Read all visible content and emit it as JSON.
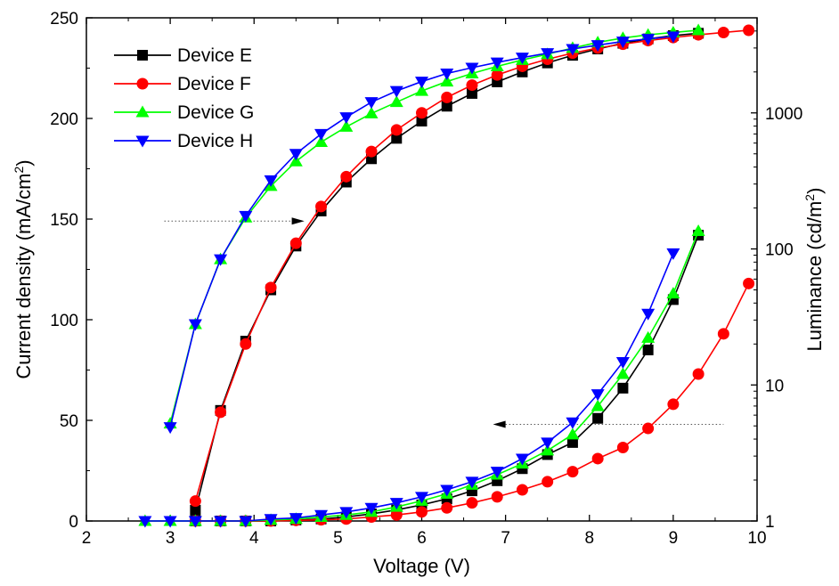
{
  "chart_data": {
    "type": "line",
    "xlabel": "Voltage (V)",
    "ylabel_left": "Current density (mA/cm",
    "ylabel_left_sup": "2",
    "ylabel_left_tail": ")",
    "ylabel_right": "Luminance (cd/m",
    "ylabel_right_sup": "2",
    "ylabel_right_tail": ")",
    "xlim": [
      2,
      10
    ],
    "ylim_left": [
      0,
      250
    ],
    "ylim_right": [
      1,
      5000
    ],
    "right_scale": "log",
    "x_ticks": [
      "2",
      "3",
      "4",
      "5",
      "6",
      "7",
      "8",
      "9",
      "10"
    ],
    "y_left_ticks": [
      "0",
      "50",
      "100",
      "150",
      "200",
      "250"
    ],
    "y_right_ticks": [
      "1",
      "10",
      "100",
      "1000"
    ],
    "legend_position": "top-left",
    "grid": false,
    "annotations": [
      {
        "kind": "arrow",
        "points_to": "right axis (luminance)",
        "y": 149
      },
      {
        "kind": "arrow",
        "points_to": "left axis (current density)",
        "y": 48
      }
    ],
    "series": [
      {
        "name": "Device E",
        "color": "#000000",
        "marker": "square",
        "current_density": {
          "x": [
            3.3,
            3.6,
            3.9,
            4.2,
            4.5,
            4.8,
            5.1,
            5.4,
            5.7,
            6.0,
            6.3,
            6.6,
            6.9,
            7.2,
            7.5,
            7.8,
            8.1,
            8.4,
            8.7,
            9.0,
            9.3
          ],
          "y": [
            0,
            0,
            0,
            0,
            0.5,
            1,
            2,
            3.5,
            5.5,
            8,
            11,
            15,
            20,
            26,
            33,
            39,
            51,
            66,
            85,
            110,
            142
          ]
        },
        "luminance": {
          "x": [
            3.3,
            3.6,
            3.9,
            4.2,
            4.5,
            4.8,
            5.1,
            5.4,
            5.7,
            6.0,
            6.3,
            6.6,
            6.9,
            7.2,
            7.5,
            7.8,
            8.1,
            8.4,
            8.7,
            9.0,
            9.3
          ],
          "y": [
            1.2,
            6.5,
            21,
            50,
            105,
            190,
            310,
            460,
            650,
            870,
            1120,
            1390,
            1690,
            2000,
            2330,
            2650,
            2950,
            3250,
            3500,
            3700,
            3850
          ]
        }
      },
      {
        "name": "Device F",
        "color": "#ff0000",
        "marker": "circle",
        "current_density": {
          "x": [
            3.3,
            3.6,
            3.9,
            4.2,
            4.5,
            4.8,
            5.1,
            5.4,
            5.7,
            6.0,
            6.3,
            6.6,
            6.9,
            7.2,
            7.5,
            7.8,
            8.1,
            8.4,
            8.7,
            9.0,
            9.3,
            9.6,
            9.9
          ],
          "y": [
            0,
            0,
            0,
            0,
            0.3,
            0.6,
            1,
            2,
            3,
            4.5,
            6.5,
            9,
            12,
            15.5,
            19.5,
            24.5,
            31,
            36.5,
            46,
            58,
            73,
            93,
            118
          ]
        },
        "luminance": {
          "x": [
            3.3,
            3.6,
            3.9,
            4.2,
            4.5,
            4.8,
            5.1,
            5.4,
            5.7,
            6.0,
            6.3,
            6.6,
            6.9,
            7.2,
            7.5,
            7.8,
            8.1,
            8.4,
            8.7,
            9.0,
            9.3,
            9.6,
            9.9
          ],
          "y": [
            1.4,
            6.3,
            20,
            52,
            110,
            205,
            340,
            520,
            750,
            1000,
            1300,
            1600,
            1900,
            2200,
            2480,
            2750,
            3000,
            3200,
            3400,
            3580,
            3750,
            3900,
            4050
          ]
        }
      },
      {
        "name": "Device G",
        "color": "#00ff00",
        "marker": "triangle-up",
        "current_density": {
          "x": [
            2.7,
            3.0,
            3.3,
            3.6,
            3.9,
            4.2,
            4.5,
            4.8,
            5.1,
            5.4,
            5.7,
            6.0,
            6.3,
            6.6,
            6.9,
            7.2,
            7.5,
            7.8,
            8.1,
            8.4,
            8.7,
            9.0,
            9.3
          ],
          "y": [
            0,
            0,
            0,
            0,
            0,
            0.5,
            1,
            2,
            3,
            4.5,
            7,
            10,
            13.5,
            18,
            23,
            28.5,
            35,
            43,
            57,
            73,
            91,
            113,
            144
          ]
        },
        "luminance": {
          "x": [
            3.0,
            3.3,
            3.6,
            3.9,
            4.2,
            4.5,
            4.8,
            5.1,
            5.4,
            5.7,
            6.0,
            6.3,
            6.6,
            6.9,
            7.2,
            7.5,
            7.8,
            8.1,
            8.4,
            8.7,
            9.0,
            9.3
          ],
          "y": [
            5.2,
            28,
            84,
            170,
            290,
            440,
            610,
            790,
            990,
            1200,
            1450,
            1700,
            1950,
            2200,
            2450,
            2700,
            3000,
            3300,
            3550,
            3750,
            3900,
            4050
          ]
        }
      },
      {
        "name": "Device H",
        "color": "#0000ff",
        "marker": "triangle-down",
        "current_density": {
          "x": [
            2.7,
            3.0,
            3.3,
            3.6,
            3.9,
            4.2,
            4.5,
            4.8,
            5.1,
            5.4,
            5.7,
            6.0,
            6.3,
            6.6,
            6.9,
            7.2,
            7.5,
            7.8,
            8.1,
            8.4,
            8.7,
            9.0
          ],
          "y": [
            0,
            0,
            0,
            0,
            0,
            1,
            1.5,
            3,
            4.5,
            6.5,
            9,
            12,
            15.5,
            19.5,
            24.5,
            31,
            39,
            49,
            63,
            79,
            103,
            133
          ]
        },
        "luminance": {
          "x": [
            3.0,
            3.3,
            3.6,
            3.9,
            4.2,
            4.5,
            4.8,
            5.1,
            5.4,
            5.7,
            6.0,
            6.3,
            6.6,
            6.9,
            7.2,
            7.5,
            7.8,
            8.1,
            8.4,
            8.7,
            9.0
          ],
          "y": [
            4.9,
            28,
            84,
            175,
            320,
            500,
            700,
            930,
            1200,
            1450,
            1700,
            1950,
            2150,
            2350,
            2550,
            2750,
            2950,
            3150,
            3350,
            3500,
            3650
          ]
        }
      }
    ]
  }
}
